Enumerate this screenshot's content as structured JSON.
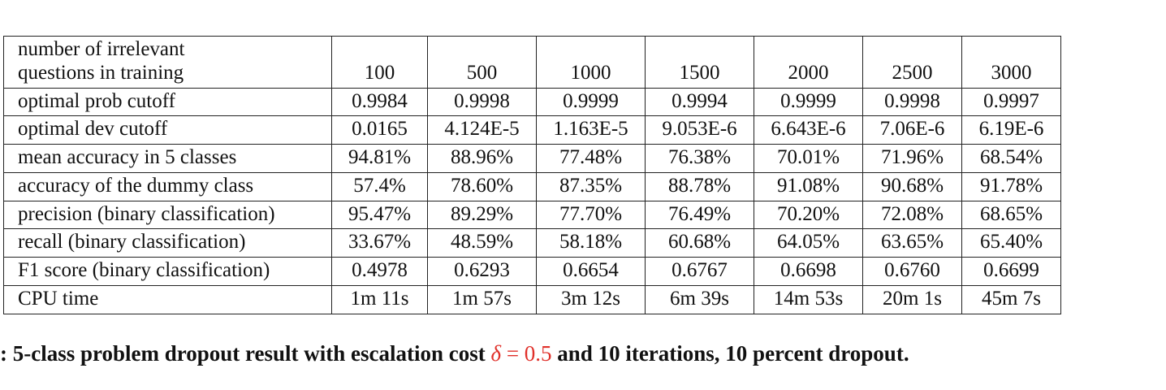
{
  "table": {
    "header": {
      "label_line1": "number of irrelevant",
      "label_line2": "questions in training",
      "values": [
        "100",
        "500",
        "1000",
        "1500",
        "2000",
        "2500",
        "3000"
      ]
    },
    "rows": [
      {
        "label": "optimal prob cutoff",
        "values": [
          "0.9984",
          "0.9998",
          "0.9999",
          "0.9994",
          "0.9999",
          "0.9998",
          "0.9997"
        ]
      },
      {
        "label": "optimal dev cutoff",
        "values": [
          "0.0165",
          "4.124E-5",
          "1.163E-5",
          "9.053E-6",
          "6.643E-6",
          "7.06E-6",
          "6.19E-6"
        ]
      },
      {
        "label": "mean accuracy in 5 classes",
        "values": [
          "94.81%",
          "88.96%",
          "77.48%",
          "76.38%",
          "70.01%",
          "71.96%",
          "68.54%"
        ]
      },
      {
        "label": "accuracy of the dummy class",
        "values": [
          "57.4%",
          "78.60%",
          "87.35%",
          "88.78%",
          "91.08%",
          "90.68%",
          "91.78%"
        ]
      },
      {
        "label": "precision (binary classification)",
        "values": [
          "95.47%",
          "89.29%",
          "77.70%",
          "76.49%",
          "70.20%",
          "72.08%",
          "68.65%"
        ]
      },
      {
        "label": "recall (binary classification)",
        "values": [
          "33.67%",
          "48.59%",
          "58.18%",
          "60.68%",
          "64.05%",
          "63.65%",
          "65.40%"
        ]
      },
      {
        "label": "F1 score (binary classification)",
        "values": [
          "0.4978",
          "0.6293",
          "0.6654",
          "0.6767",
          "0.6698",
          "0.6760",
          "0.6699"
        ]
      },
      {
        "label": "CPU time",
        "values": [
          "1m 11s",
          "1m 57s",
          "3m 12s",
          "6m 39s",
          "14m 53s",
          "20m 1s",
          "45m 7s"
        ]
      }
    ]
  },
  "caption": {
    "prefix": ": 5-class problem dropout result with escalation cost ",
    "math_symbol": "δ",
    "math_rest": " = 0.5",
    "suffix": " and 10 iterations, 10 percent dropout.",
    "math_color": "#e0302a"
  }
}
